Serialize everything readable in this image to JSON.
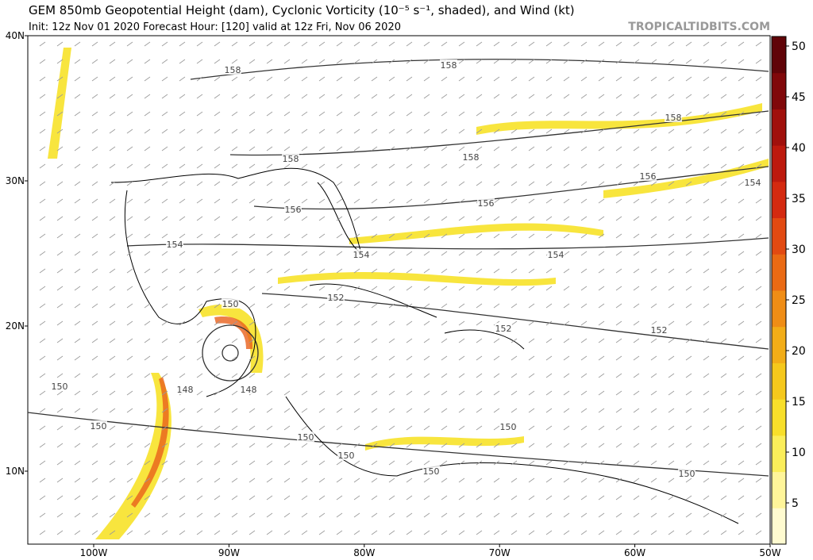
{
  "header": {
    "title": "GEM 850mb Geopotential Height (dam), Cyclonic Vorticity (10⁻⁵ s⁻¹, shaded), and Wind (kt)",
    "subtitle": "Init: 12z Nov 01 2020   Forecast Hour: [120]   valid at 12z Fri, Nov 06 2020",
    "watermark": "TROPICALTIDBITS.COM"
  },
  "map": {
    "lat_labels": [
      "40N",
      "30N",
      "20N",
      "10N"
    ],
    "lon_labels": [
      "100W",
      "90W",
      "80W",
      "70W",
      "60W",
      "50W"
    ],
    "contour_labels": [
      "158",
      "158",
      "158",
      "158",
      "158",
      "156",
      "156",
      "156",
      "154",
      "154",
      "154",
      "154",
      "152",
      "152",
      "152",
      "150",
      "150",
      "150",
      "150",
      "150",
      "150",
      "150",
      "150",
      "148",
      "148"
    ]
  },
  "colorbar": {
    "ticks": [
      5,
      10,
      15,
      20,
      25,
      30,
      35,
      40,
      45,
      50
    ]
  }
}
